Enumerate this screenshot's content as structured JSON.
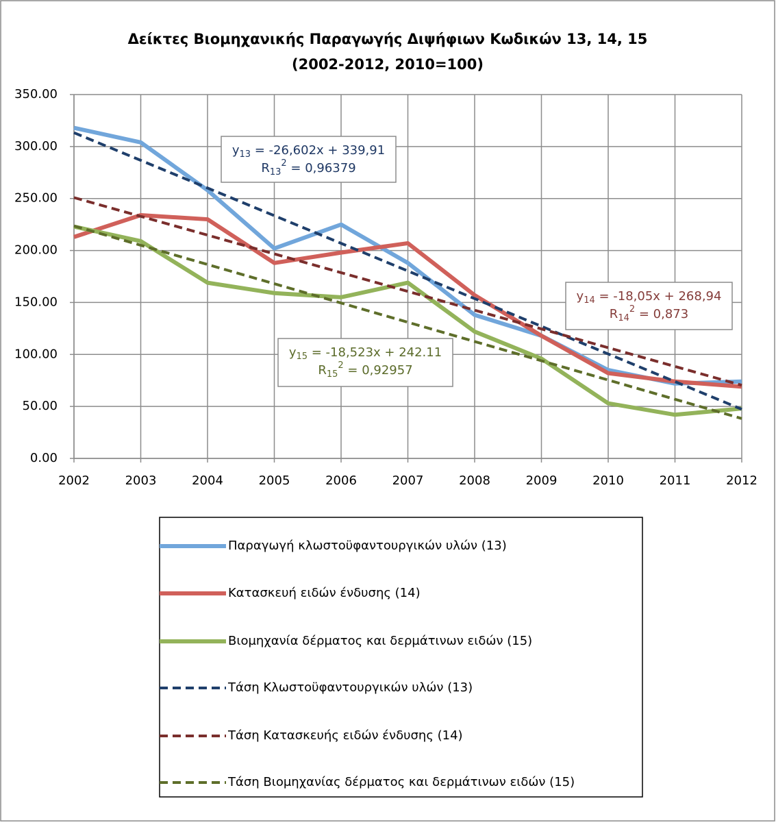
{
  "chart_data": {
    "type": "line",
    "title": "Δείκτες Βιομηχανικής Παραγωγής Διψήφιων Κωδικών 13, 14, 15",
    "subtitle": "(2002-2012, 2010=100)",
    "x": [
      2002,
      2003,
      2004,
      2005,
      2006,
      2007,
      2008,
      2009,
      2010,
      2011,
      2012
    ],
    "xlim": [
      2002,
      2012
    ],
    "xticks": [
      2002,
      2003,
      2004,
      2005,
      2006,
      2007,
      2008,
      2009,
      2010,
      2011,
      2012
    ],
    "ylim": [
      0,
      350
    ],
    "yticks": [
      {
        "value": 0,
        "label": "0.00"
      },
      {
        "value": 50,
        "label": "50.00"
      },
      {
        "value": 100,
        "label": "100.00"
      },
      {
        "value": 150,
        "label": "150.00"
      },
      {
        "value": 200,
        "label": "200.00"
      },
      {
        "value": 250,
        "label": "250.00"
      },
      {
        "value": 300,
        "label": "300.00"
      },
      {
        "value": 350,
        "label": "350.00"
      }
    ],
    "grid": true,
    "series": [
      {
        "name": "Παραγωγή κλωστοϋφαντουργικών υλών (13)",
        "color": "#71a6db",
        "dashed": false,
        "values": [
          318,
          304,
          258,
          202,
          225,
          188,
          138,
          118,
          85,
          72,
          74
        ]
      },
      {
        "name": "Κατασκευή ειδών ένδυσης (14)",
        "color": "#d0605a",
        "dashed": false,
        "values": [
          213,
          234,
          230,
          188,
          198,
          207,
          157,
          118,
          82,
          74,
          69
        ]
      },
      {
        "name": "Βιομηχανία δέρματος και δερμάτινων ειδών (15)",
        "color": "#93b35a",
        "dashed": false,
        "values": [
          223,
          209,
          169,
          159,
          155,
          169,
          122,
          96,
          53,
          42,
          48
        ]
      },
      {
        "name": "Τάση Κλωστοϋφαντουργικών υλών (13)",
        "color": "#1f3f6b",
        "dashed": true,
        "values": [
          313.31,
          286.71,
          260.1,
          233.5,
          206.9,
          180.3,
          153.7,
          127.09,
          100.49,
          73.89,
          47.29
        ]
      },
      {
        "name": "Τάση Κατασκευής ειδών ένδυσης (14)",
        "color": "#7a2e2c",
        "dashed": true,
        "values": [
          250.89,
          232.84,
          214.79,
          196.74,
          178.69,
          160.64,
          142.59,
          124.54,
          106.49,
          88.44,
          70.39
        ]
      },
      {
        "name": "Τάση Βιομηχανίας δέρματος και δερμάτινων ειδών (15)",
        "color": "#5e6e2a",
        "dashed": true,
        "values": [
          223.59,
          205.06,
          186.54,
          168.02,
          149.5,
          130.97,
          112.45,
          93.93,
          75.4,
          56.88,
          38.36
        ]
      }
    ],
    "annotations": [
      {
        "color": "#1f3864",
        "line1": [
          "y",
          "13",
          " = -26,602x + 339,91"
        ],
        "line2": [
          "R",
          "13",
          "2",
          " = 0,96379"
        ]
      },
      {
        "color": "#843c39",
        "line1": [
          "y",
          "14",
          " = -18,05x + 268,94"
        ],
        "line2": [
          "R",
          "14",
          "2",
          " = 0,873"
        ]
      },
      {
        "color": "#5b6b2a",
        "line1": [
          "y",
          "15",
          " = -18,523x + 242.11"
        ],
        "line2": [
          "R",
          "15",
          "2",
          " = 0,92957"
        ]
      }
    ]
  }
}
